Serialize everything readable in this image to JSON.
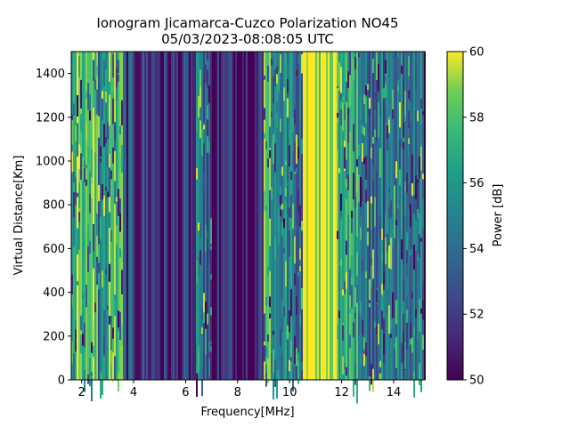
{
  "chart_data": {
    "type": "heatmap",
    "title": "Ionogram Jicamarca-Cuzco Polarization NO45",
    "subtitle": "05/03/2023-08:08:05 UTC",
    "xlabel": "Frequency[MHz]",
    "ylabel": "Virtual Distance[Km]",
    "xlim": [
      1.6,
      15.2
    ],
    "ylim": [
      0,
      1500
    ],
    "xticks": [
      2,
      4,
      6,
      8,
      10,
      12,
      14
    ],
    "yticks": [
      0,
      200,
      400,
      600,
      800,
      1000,
      1200,
      1400
    ],
    "colorbar": {
      "label": "Power [dB]",
      "range": [
        50,
        60
      ],
      "ticks": [
        50,
        52,
        54,
        56,
        58,
        60
      ],
      "colormap": "viridis"
    },
    "grid": false,
    "frequency_profile": [
      {
        "x": [
          1.6,
          1.8
        ],
        "level": 0.55
      },
      {
        "x": [
          1.8,
          2.6
        ],
        "level": 0.9
      },
      {
        "x": [
          2.6,
          3.0
        ],
        "level": 0.45
      },
      {
        "x": [
          3.0,
          3.6
        ],
        "level": 0.75
      },
      {
        "x": [
          3.6,
          5.0
        ],
        "level": 0.2
      },
      {
        "x": [
          5.0,
          6.4
        ],
        "level": 0.12
      },
      {
        "x": [
          6.4,
          7.0
        ],
        "level": 0.35
      },
      {
        "x": [
          7.0,
          9.0
        ],
        "level": 0.12
      },
      {
        "x": [
          9.0,
          9.3
        ],
        "level": 0.85
      },
      {
        "x": [
          9.3,
          10.5
        ],
        "level": 0.45
      },
      {
        "x": [
          10.5,
          11.8
        ],
        "level": 1.0
      },
      {
        "x": [
          11.8,
          12.2
        ],
        "level": 0.75
      },
      {
        "x": [
          12.2,
          13.0
        ],
        "level": 0.6
      },
      {
        "x": [
          13.0,
          15.2
        ],
        "level": 0.4
      }
    ]
  }
}
